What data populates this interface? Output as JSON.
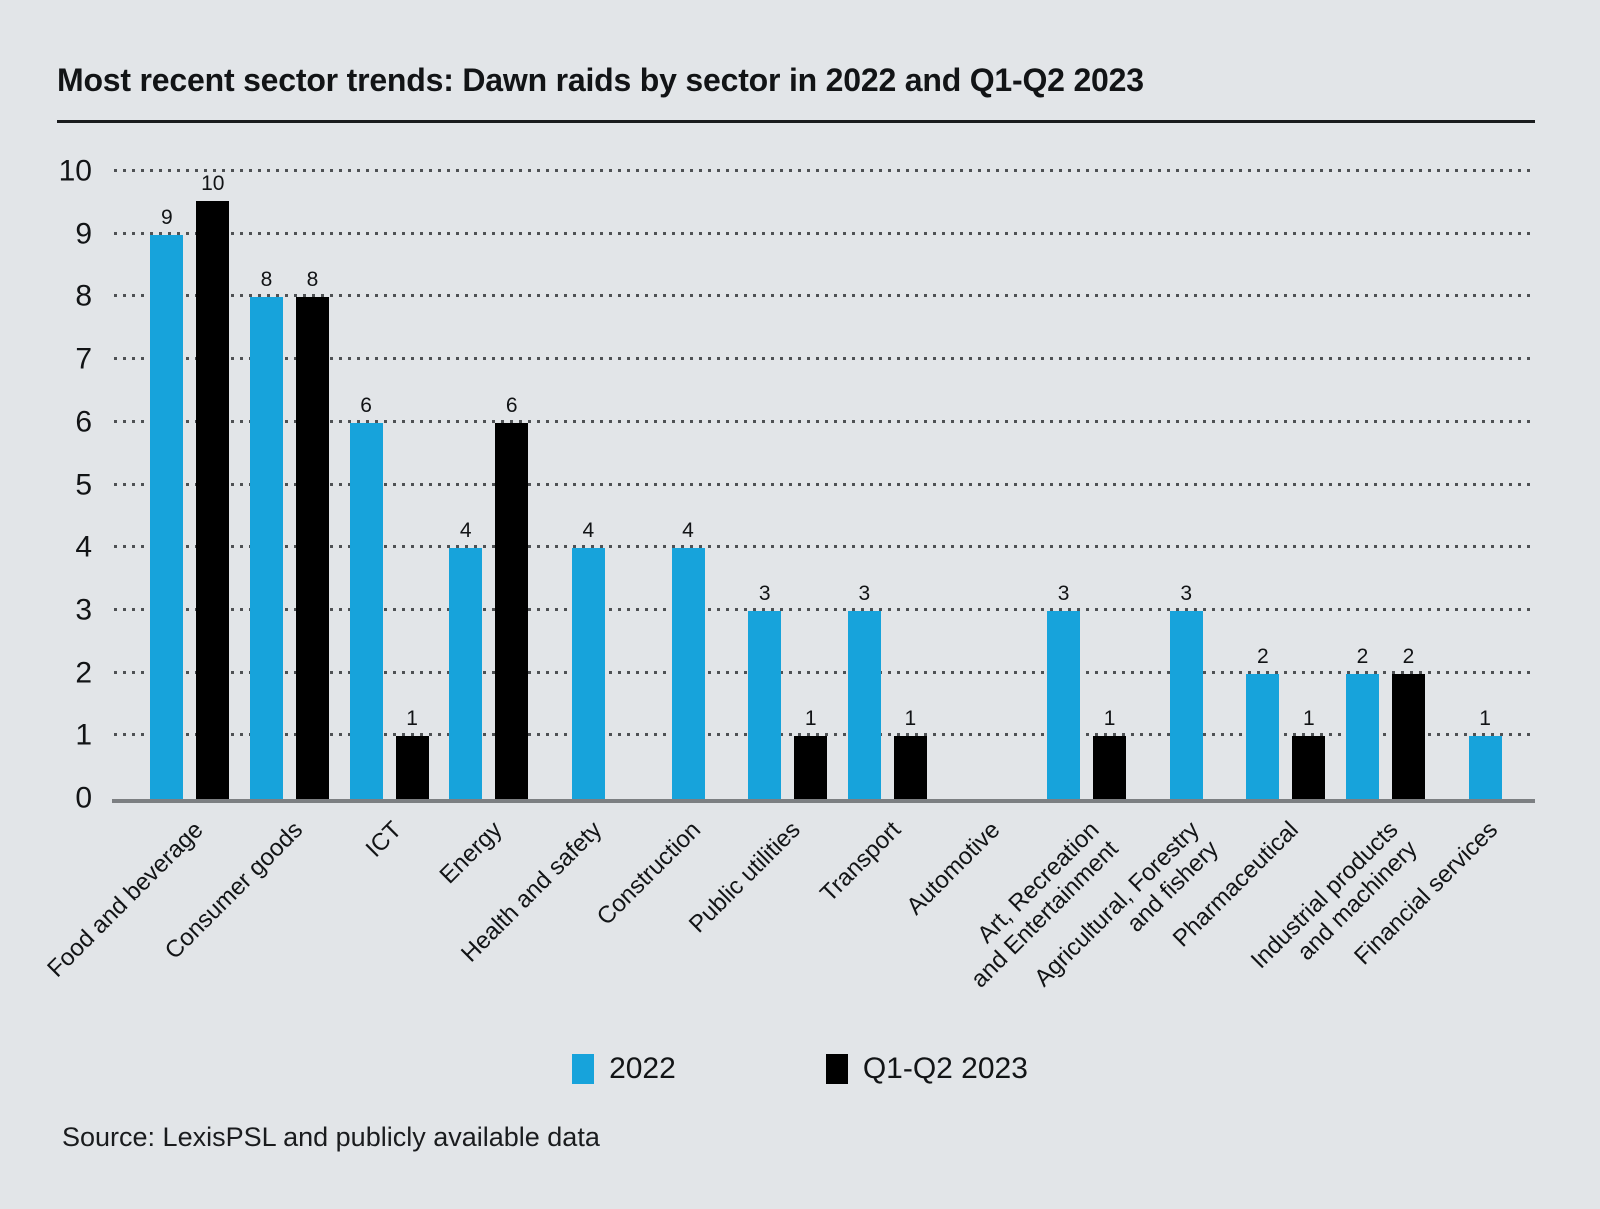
{
  "title": "Most recent sector trends: Dawn raids by sector in 2022 and Q1-Q2 2023",
  "source": "Source: LexisPSL and publicly available data",
  "colors": {
    "background": "#E2E5E8",
    "series_2022": "#17A3DB",
    "series_q1q2_2023": "#000000",
    "gridline": "#4E5154",
    "axis_line": "#7C7F82",
    "title_rule": "#1A1C1E"
  },
  "legend": [
    {
      "label": "2022",
      "color": "#17A3DB"
    },
    {
      "label": "Q1-Q2 2023",
      "color": "#000000"
    }
  ],
  "chart_data": {
    "type": "bar",
    "title": "Most recent sector trends: Dawn raids by sector in 2022 and Q1-Q2 2023",
    "categories": [
      "Food and beverage",
      "Consumer goods",
      "ICT",
      "Energy",
      "Health and safety",
      "Construction",
      "Public utilities",
      "Transport",
      "Automotive",
      "Art, Recreation\nand Entertainment",
      "Agricultural, Forestry\nand fishery",
      "Pharmaceutical",
      "Industrial products\nand machinery",
      "Financial services"
    ],
    "series": [
      {
        "name": "2022",
        "color": "#17A3DB",
        "values": [
          9,
          8,
          6,
          4,
          4,
          4,
          3,
          3,
          null,
          3,
          3,
          2,
          2,
          1
        ]
      },
      {
        "name": "Q1-Q2 2023",
        "color": "#000000",
        "values": [
          10,
          8,
          1,
          6,
          null,
          null,
          1,
          1,
          null,
          1,
          null,
          1,
          2,
          null
        ]
      }
    ],
    "xlabel": "",
    "ylabel": "",
    "ylim": [
      0,
      10
    ],
    "yticks": [
      0,
      1,
      2,
      3,
      4,
      5,
      6,
      7,
      8,
      9,
      10
    ],
    "grid": "horizontal-dotted",
    "bar_value_labels": true,
    "legend_position": "bottom"
  }
}
